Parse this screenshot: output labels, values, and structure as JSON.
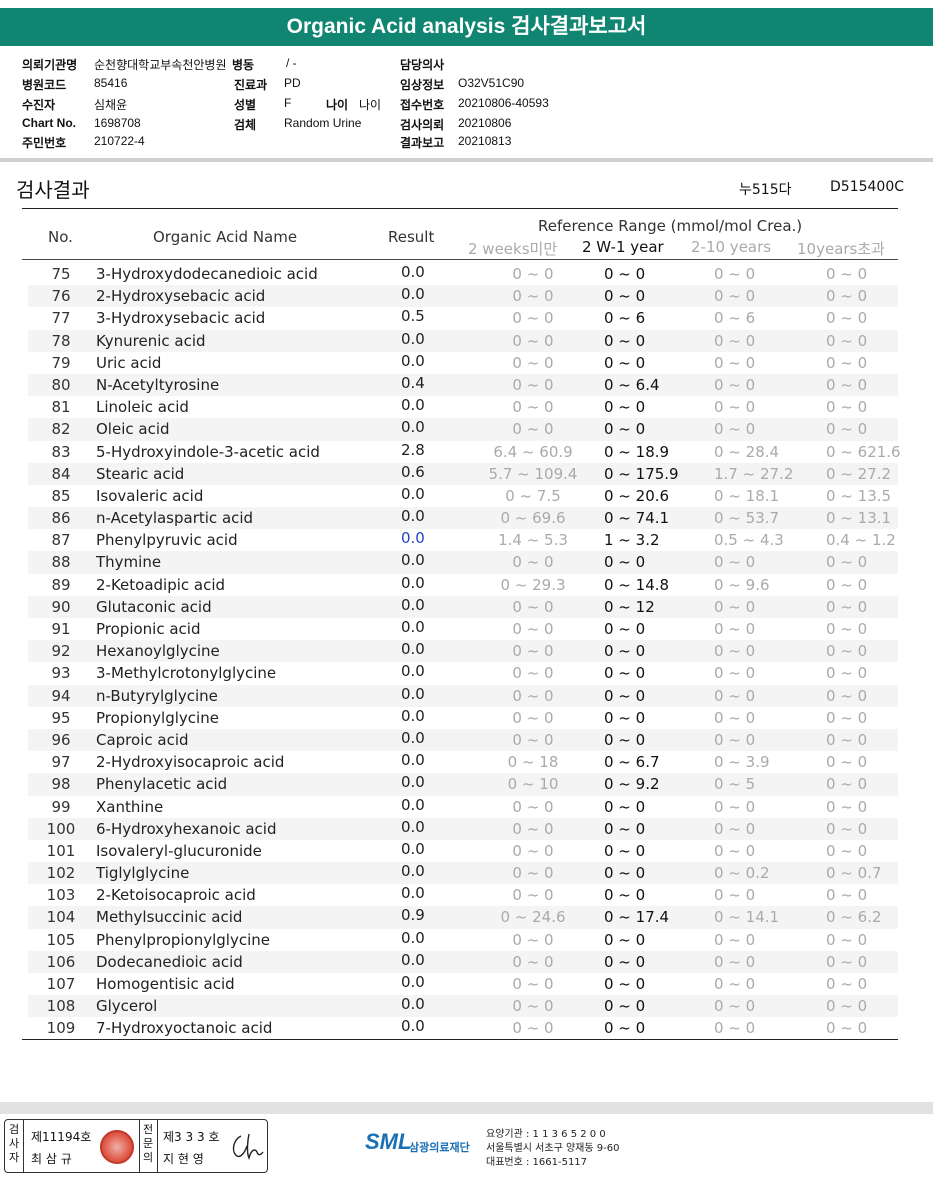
{
  "title": "Organic Acid analysis 검사결과보고서",
  "patient_info": {
    "left": [
      {
        "label": "의뢰기관명",
        "value": "순천향대학교부속천안병원"
      },
      {
        "label": "병원코드",
        "value": "85416"
      },
      {
        "label": "수진자",
        "value": "심채윤"
      },
      {
        "label": "Chart No.",
        "value": "1698708"
      },
      {
        "label": "주민번호",
        "value": "210722-4"
      }
    ],
    "middle": [
      {
        "label": "병동",
        "value": "/ -"
      },
      {
        "label": "진료과",
        "value": "PD"
      },
      {
        "label": "성별",
        "value": "F"
      },
      {
        "label": "검체",
        "value": "Random Urine"
      }
    ],
    "age": {
      "label": "나이",
      "value": "나이"
    },
    "right": [
      {
        "label": "담당의사",
        "value": ""
      },
      {
        "label": "임상정보",
        "value": "O32V51C90"
      },
      {
        "label": "접수번호",
        "value": "20210806-40593"
      },
      {
        "label": "검사의뢰",
        "value": "20210806"
      },
      {
        "label": "결과보고",
        "value": "20210813"
      }
    ]
  },
  "section": {
    "title": "검사결과",
    "code1": "누515다",
    "code2": "D515400C"
  },
  "table_header": {
    "no": "No.",
    "name": "Organic Acid Name",
    "result": "Result",
    "reference": "Reference Range (mmol/mol Crea.)",
    "ranges": [
      "2 weeks미만",
      "2 W-1 year",
      "2-10 years",
      "10years초과"
    ]
  },
  "rows": [
    {
      "no": "75",
      "name": "3-Hydroxydodecanedioic acid",
      "result": "0.0",
      "r1": "0 ~ 0",
      "r2": "0 ~ 0",
      "r3": "0 ~ 0",
      "r4": "0 ~ 0"
    },
    {
      "no": "76",
      "name": "2-Hydroxysebacic acid",
      "result": "0.0",
      "r1": "0 ~ 0",
      "r2": "0 ~ 0",
      "r3": "0 ~ 0",
      "r4": "0 ~ 0"
    },
    {
      "no": "77",
      "name": "3-Hydroxysebacic acid",
      "result": "0.5",
      "r1": "0 ~ 0",
      "r2": "0 ~ 6",
      "r3": "0 ~ 6",
      "r4": "0 ~ 0"
    },
    {
      "no": "78",
      "name": "Kynurenic acid",
      "result": "0.0",
      "r1": "0 ~ 0",
      "r2": "0 ~ 0",
      "r3": "0 ~ 0",
      "r4": "0 ~ 0"
    },
    {
      "no": "79",
      "name": "Uric acid",
      "result": "0.0",
      "r1": "0 ~ 0",
      "r2": "0 ~ 0",
      "r3": "0 ~ 0",
      "r4": "0 ~ 0"
    },
    {
      "no": "80",
      "name": "N-Acetyltyrosine",
      "result": "0.4",
      "r1": "0 ~ 0",
      "r2": "0 ~ 6.4",
      "r3": "0 ~ 0",
      "r4": "0 ~ 0"
    },
    {
      "no": "81",
      "name": "Linoleic acid",
      "result": "0.0",
      "r1": "0 ~ 0",
      "r2": "0 ~ 0",
      "r3": "0 ~ 0",
      "r4": "0 ~ 0"
    },
    {
      "no": "82",
      "name": "Oleic acid",
      "result": "0.0",
      "r1": "0 ~ 0",
      "r2": "0 ~ 0",
      "r3": "0 ~ 0",
      "r4": "0 ~ 0"
    },
    {
      "no": "83",
      "name": "5-Hydroxyindole-3-acetic acid",
      "result": "2.8",
      "r1": "6.4 ~ 60.9",
      "r2": "0 ~ 18.9",
      "r3": "0 ~ 28.4",
      "r4": "0 ~ 621.6"
    },
    {
      "no": "84",
      "name": "Stearic acid",
      "result": "0.6",
      "r1": "5.7 ~ 109.4",
      "r2": "0 ~ 175.9",
      "r3": "1.7 ~ 27.2",
      "r4": "0 ~ 27.2"
    },
    {
      "no": "85",
      "name": "Isovaleric acid",
      "result": "0.0",
      "r1": "0 ~ 7.5",
      "r2": "0 ~ 20.6",
      "r3": "0 ~ 18.1",
      "r4": "0 ~ 13.5"
    },
    {
      "no": "86",
      "name": "n-Acetylaspartic acid",
      "result": "0.0",
      "r1": "0 ~ 69.6",
      "r2": "0 ~ 74.1",
      "r3": "0 ~ 53.7",
      "r4": "0 ~ 13.1"
    },
    {
      "no": "87",
      "name": "Phenylpyruvic acid",
      "result": "0.0",
      "result_blue": true,
      "r1": "1.4 ~ 5.3",
      "r2": "1 ~ 3.2",
      "r3": "0.5 ~ 4.3",
      "r4": "0.4 ~ 1.2"
    },
    {
      "no": "88",
      "name": "Thymine",
      "result": "0.0",
      "r1": "0 ~ 0",
      "r2": "0 ~ 0",
      "r3": "0 ~ 0",
      "r4": "0 ~ 0"
    },
    {
      "no": "89",
      "name": "2-Ketoadipic acid",
      "result": "0.0",
      "r1": "0 ~ 29.3",
      "r2": "0 ~ 14.8",
      "r3": "0 ~ 9.6",
      "r4": "0 ~ 0"
    },
    {
      "no": "90",
      "name": "Glutaconic acid",
      "result": "0.0",
      "r1": "0 ~ 0",
      "r2": "0 ~ 12",
      "r3": "0 ~ 0",
      "r4": "0 ~ 0"
    },
    {
      "no": "91",
      "name": "Propionic acid",
      "result": "0.0",
      "r1": "0 ~ 0",
      "r2": "0 ~ 0",
      "r3": "0 ~ 0",
      "r4": "0 ~ 0"
    },
    {
      "no": "92",
      "name": "Hexanoylglycine",
      "result": "0.0",
      "r1": "0 ~ 0",
      "r2": "0 ~ 0",
      "r3": "0 ~ 0",
      "r4": "0 ~ 0"
    },
    {
      "no": "93",
      "name": "3-Methylcrotonylglycine",
      "result": "0.0",
      "r1": "0 ~ 0",
      "r2": "0 ~ 0",
      "r3": "0 ~ 0",
      "r4": "0 ~ 0"
    },
    {
      "no": "94",
      "name": "n-Butyrylglycine",
      "result": "0.0",
      "r1": "0 ~ 0",
      "r2": "0 ~ 0",
      "r3": "0 ~ 0",
      "r4": "0 ~ 0"
    },
    {
      "no": "95",
      "name": "Propionylglycine",
      "result": "0.0",
      "r1": "0 ~ 0",
      "r2": "0 ~ 0",
      "r3": "0 ~ 0",
      "r4": "0 ~ 0"
    },
    {
      "no": "96",
      "name": "Caproic acid",
      "result": "0.0",
      "r1": "0 ~ 0",
      "r2": "0 ~ 0",
      "r3": "0 ~ 0",
      "r4": "0 ~ 0"
    },
    {
      "no": "97",
      "name": "2-Hydroxyisocaproic acid",
      "result": "0.0",
      "r1": "0 ~ 18",
      "r2": "0 ~ 6.7",
      "r3": "0 ~ 3.9",
      "r4": "0 ~ 0"
    },
    {
      "no": "98",
      "name": "Phenylacetic acid",
      "result": "0.0",
      "r1": "0 ~ 10",
      "r2": "0 ~ 9.2",
      "r3": "0 ~ 5",
      "r4": "0 ~ 0"
    },
    {
      "no": "99",
      "name": "Xanthine",
      "result": "0.0",
      "r1": "0 ~ 0",
      "r2": "0 ~ 0",
      "r3": "0 ~ 0",
      "r4": "0 ~ 0"
    },
    {
      "no": "100",
      "name": "6-Hydroxyhexanoic acid",
      "result": "0.0",
      "r1": "0 ~ 0",
      "r2": "0 ~ 0",
      "r3": "0 ~ 0",
      "r4": "0 ~ 0"
    },
    {
      "no": "101",
      "name": "Isovaleryl-glucuronide",
      "result": "0.0",
      "r1": "0 ~ 0",
      "r2": "0 ~ 0",
      "r3": "0 ~ 0",
      "r4": "0 ~ 0"
    },
    {
      "no": "102",
      "name": "Tiglylglycine",
      "result": "0.0",
      "r1": "0 ~ 0",
      "r2": "0 ~ 0",
      "r3": "0 ~ 0.2",
      "r4": "0 ~ 0.7"
    },
    {
      "no": "103",
      "name": "2-Ketoisocaproic acid",
      "result": "0.0",
      "r1": "0 ~ 0",
      "r2": "0 ~ 0",
      "r3": "0 ~ 0",
      "r4": "0 ~ 0"
    },
    {
      "no": "104",
      "name": "Methylsuccinic acid",
      "result": "0.9",
      "r1": "0 ~ 24.6",
      "r2": "0 ~ 17.4",
      "r3": "0 ~ 14.1",
      "r4": "0 ~ 6.2"
    },
    {
      "no": "105",
      "name": "Phenylpropionylglycine",
      "result": "0.0",
      "r1": "0 ~ 0",
      "r2": "0 ~ 0",
      "r3": "0 ~ 0",
      "r4": "0 ~ 0"
    },
    {
      "no": "106",
      "name": "Dodecanedioic acid",
      "result": "0.0",
      "r1": "0 ~ 0",
      "r2": "0 ~ 0",
      "r3": "0 ~ 0",
      "r4": "0 ~ 0"
    },
    {
      "no": "107",
      "name": "Homogentisic acid",
      "result": "0.0",
      "r1": "0 ~ 0",
      "r2": "0 ~ 0",
      "r3": "0 ~ 0",
      "r4": "0 ~ 0"
    },
    {
      "no": "108",
      "name": "Glycerol",
      "result": "0.0",
      "r1": "0 ~ 0",
      "r2": "0 ~ 0",
      "r3": "0 ~ 0",
      "r4": "0 ~ 0"
    },
    {
      "no": "109",
      "name": "7-Hydroxyoctanoic acid",
      "result": "0.0",
      "r1": "0 ~ 0",
      "r2": "0 ~ 0",
      "r3": "0 ~ 0",
      "r4": "0 ~ 0"
    }
  ],
  "footer": {
    "examiner_vertical": [
      "검",
      "사",
      "자"
    ],
    "examiner_no": "제11194호",
    "examiner_name": "최 삼 규",
    "reviewer_vertical": [
      "전",
      "문",
      "의"
    ],
    "reviewer_no": "제3 3 3 호",
    "reviewer_name": "지 현 영",
    "logo_text": "SML",
    "logo_org": "삼광의료재단",
    "address_lines": [
      "요양기관 : 1 1 3 6 5 2 0 0",
      "서울특별시 서초구 양재동 9-60",
      "대표번호 : 1661-5117"
    ]
  },
  "colors": {
    "header_teal": "#0f8572",
    "result_blue": "#2244cc",
    "logo_blue": "#1a6fb5"
  }
}
